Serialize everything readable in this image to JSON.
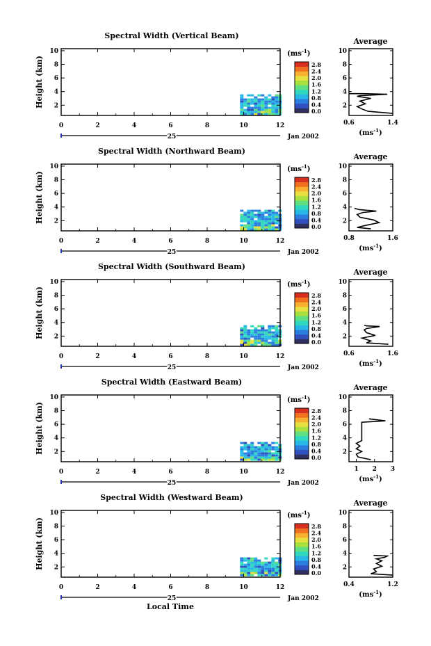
{
  "panels": [
    {
      "title": "Spectral Width (Vertical Beam)",
      "ylabel": "Height (km)",
      "unit": "(ms",
      "unit_exp": "-1",
      "colorbar_ticks": [
        "2.8",
        "2.4",
        "2.0",
        "1.6",
        "1.2",
        "0.8",
        "0.4",
        "0.0"
      ],
      "x_ticks": [
        "0",
        "2",
        "4",
        "6",
        "8",
        "10",
        "12"
      ],
      "y_ticks": [
        "2",
        "4",
        "6",
        "8",
        "10"
      ],
      "date_day": "25",
      "date_month": "Jan 2002",
      "avg_title": "Average",
      "avg_x_ticks": [
        "0.6",
        "1.4"
      ],
      "avg_y_ticks": [
        "2",
        "4",
        "6",
        "8",
        "10"
      ],
      "avg_unit": "(ms",
      "avg_unit_exp": "-1"
    },
    {
      "title": "Spectral Width (Northward Beam)",
      "ylabel": "Height (km)",
      "unit": "(ms",
      "unit_exp": "-1",
      "colorbar_ticks": [
        "2.8",
        "2.4",
        "2.0",
        "1.6",
        "1.2",
        "0.8",
        "0.4",
        "0.0"
      ],
      "x_ticks": [
        "0",
        "2",
        "4",
        "6",
        "8",
        "10",
        "12"
      ],
      "y_ticks": [
        "2",
        "4",
        "6",
        "8",
        "10"
      ],
      "date_day": "25",
      "date_month": "Jan 2002",
      "avg_title": "Average",
      "avg_x_ticks": [
        "0.8",
        "1.6"
      ],
      "avg_y_ticks": [
        "2",
        "4",
        "6",
        "8",
        "10"
      ],
      "avg_unit": "(ms",
      "avg_unit_exp": "-1"
    },
    {
      "title": "Spectral Width (Southward Beam)",
      "ylabel": "Height (km)",
      "unit": "(ms",
      "unit_exp": "-1",
      "colorbar_ticks": [
        "2.8",
        "2.4",
        "2.0",
        "1.6",
        "1.2",
        "0.8",
        "0.4",
        "0.0"
      ],
      "x_ticks": [
        "0",
        "2",
        "4",
        "6",
        "8",
        "10",
        "12"
      ],
      "y_ticks": [
        "2",
        "4",
        "6",
        "8",
        "10"
      ],
      "date_day": "25",
      "date_month": "Jan 2002",
      "avg_title": "Average",
      "avg_x_ticks": [
        "0.6",
        "1.6"
      ],
      "avg_y_ticks": [
        "2",
        "4",
        "6",
        "8",
        "10"
      ],
      "avg_unit": "(ms",
      "avg_unit_exp": "-1"
    },
    {
      "title": "Spectral Width (Eastward Beam)",
      "ylabel": "Height (km)",
      "unit": "(ms",
      "unit_exp": "-1",
      "colorbar_ticks": [
        "2.8",
        "2.4",
        "2.0",
        "1.6",
        "1.2",
        "0.8",
        "0.4",
        "0.0"
      ],
      "x_ticks": [
        "0",
        "2",
        "4",
        "6",
        "8",
        "10",
        "12"
      ],
      "y_ticks": [
        "2",
        "4",
        "6",
        "8",
        "10"
      ],
      "date_day": "25",
      "date_month": "Jan 2002",
      "avg_title": "Average",
      "avg_x_ticks": [
        "1",
        "2",
        "3"
      ],
      "avg_y_ticks": [
        "2",
        "4",
        "6",
        "8",
        "10"
      ],
      "avg_unit": "(ms",
      "avg_unit_exp": "-1"
    },
    {
      "title": "Spectral Width (Westward Beam)",
      "ylabel": "Height (km)",
      "unit": "(ms",
      "unit_exp": "-1",
      "colorbar_ticks": [
        "2.8",
        "2.4",
        "2.0",
        "1.6",
        "1.2",
        "0.8",
        "0.4",
        "0.0"
      ],
      "x_ticks": [
        "0",
        "2",
        "4",
        "6",
        "8",
        "10",
        "12"
      ],
      "y_ticks": [
        "2",
        "4",
        "6",
        "8",
        "10"
      ],
      "date_day": "25",
      "date_month": "Jan 2002",
      "avg_title": "Average",
      "avg_x_ticks": [
        "0.4",
        "1.2"
      ],
      "avg_y_ticks": [
        "2",
        "4",
        "6",
        "8",
        "10"
      ],
      "avg_unit": "(ms",
      "avg_unit_exp": "-1"
    }
  ],
  "xlabel": "Local Time",
  "colormap": [
    "#303060",
    "#3050c0",
    "#2a7ee0",
    "#28b8e8",
    "#30d8c0",
    "#60e080",
    "#a8e040",
    "#e8e040",
    "#f8b030",
    "#f07020",
    "#d83020"
  ],
  "chart_data": [
    {
      "type": "heatmap",
      "title": "Spectral Width (Vertical Beam)",
      "xlabel": "Local Time",
      "ylabel": "Height (km)",
      "xlim": [
        0,
        12
      ],
      "ylim": [
        0.5,
        10.3
      ],
      "colorbar_range": [
        0.0,
        2.8
      ],
      "data_extent": {
        "x": [
          9.8,
          12
        ],
        "y": [
          0.8,
          3.6
        ]
      },
      "typical_value": 0.9
    },
    {
      "type": "line",
      "title": "Average",
      "xlabel": "",
      "ylabel": "",
      "xlim": [
        0.6,
        1.4
      ],
      "ylim": [
        0.5,
        10.3
      ],
      "series": [
        {
          "x": [
            1.4,
            0.95,
            0.85,
            0.75,
            0.9,
            0.8,
            1.0,
            0.75,
            0.8,
            1.3,
            0.85,
            0.6
          ],
          "y": [
            0.8,
            1.1,
            1.4,
            1.8,
            2.2,
            2.6,
            3.0,
            3.3,
            3.4,
            3.6,
            3.7,
            3.7
          ]
        }
      ]
    },
    {
      "type": "heatmap",
      "title": "Spectral Width (Northward Beam)",
      "xlabel": "Local Time",
      "ylabel": "Height (km)",
      "xlim": [
        0,
        12
      ],
      "ylim": [
        0.5,
        10.3
      ],
      "colorbar_range": [
        0.0,
        2.8
      ],
      "data_extent": {
        "x": [
          9.8,
          12
        ],
        "y": [
          0.8,
          3.6
        ]
      },
      "typical_value": 0.9
    },
    {
      "type": "line",
      "title": "Average",
      "xlabel": "",
      "ylabel": "",
      "xlim": [
        0.8,
        1.6
      ],
      "ylim": [
        0.5,
        10.3
      ],
      "series": [
        {
          "x": [
            1.2,
            0.95,
            1.1,
            1.35,
            1.25,
            1.0,
            0.95,
            1.05,
            1.3,
            1.0,
            0.9
          ],
          "y": [
            0.8,
            1.0,
            1.3,
            1.7,
            2.1,
            2.5,
            2.9,
            3.2,
            3.4,
            3.6,
            3.8
          ]
        }
      ]
    },
    {
      "type": "heatmap",
      "title": "Spectral Width (Southward Beam)",
      "xlabel": "Local Time",
      "ylabel": "Height (km)",
      "xlim": [
        0,
        12
      ],
      "ylim": [
        0.5,
        10.3
      ],
      "colorbar_range": [
        0.0,
        2.8
      ],
      "data_extent": {
        "x": [
          9.8,
          12
        ],
        "y": [
          0.8,
          3.6
        ]
      },
      "typical_value": 0.9
    },
    {
      "type": "line",
      "title": "Average",
      "xlabel": "",
      "ylabel": "",
      "xlim": [
        0.6,
        1.6
      ],
      "ylim": [
        0.5,
        10.3
      ],
      "series": [
        {
          "x": [
            1.5,
            1.0,
            1.1,
            0.9,
            1.2,
            1.0,
            0.95,
            1.0,
            1.3,
            1.0,
            0.95
          ],
          "y": [
            0.8,
            1.0,
            1.3,
            1.7,
            2.1,
            2.5,
            2.9,
            3.1,
            3.4,
            3.5,
            3.6
          ]
        }
      ]
    },
    {
      "type": "heatmap",
      "title": "Spectral Width (Eastward Beam)",
      "xlabel": "Local Time",
      "ylabel": "Height (km)",
      "xlim": [
        0,
        12
      ],
      "ylim": [
        0.5,
        10.3
      ],
      "colorbar_range": [
        0.0,
        2.8
      ],
      "data_extent": {
        "x": [
          9.8,
          12
        ],
        "y": [
          0.8,
          3.4
        ]
      },
      "typical_value": 0.9
    },
    {
      "type": "line",
      "title": "Average",
      "xlabel": "",
      "ylabel": "",
      "xlim": [
        0.6,
        3.0
      ],
      "ylim": [
        0.5,
        10.3
      ],
      "series": [
        {
          "x": [
            1.8,
            1.1,
            1.0,
            1.3,
            1.0,
            1.2,
            1.0,
            1.3,
            1.3,
            2.6,
            1.7
          ],
          "y": [
            0.8,
            1.2,
            1.6,
            2.0,
            2.4,
            2.8,
            3.2,
            3.6,
            6.3,
            6.5,
            6.8
          ]
        }
      ]
    },
    {
      "type": "heatmap",
      "title": "Spectral Width (Westward Beam)",
      "xlabel": "Local Time",
      "ylabel": "Height (km)",
      "xlim": [
        0,
        12
      ],
      "ylim": [
        0.5,
        10.3
      ],
      "colorbar_range": [
        0.0,
        2.8
      ],
      "data_extent": {
        "x": [
          9.8,
          12
        ],
        "y": [
          0.8,
          3.4
        ]
      },
      "typical_value": 0.9
    },
    {
      "type": "line",
      "title": "Average",
      "xlabel": "",
      "ylabel": "",
      "xlim": [
        0.4,
        1.2
      ],
      "ylim": [
        0.5,
        10.3
      ],
      "series": [
        {
          "x": [
            1.2,
            0.8,
            0.9,
            0.85,
            1.0,
            0.9,
            1.0,
            0.9,
            1.05,
            1.1,
            0.85
          ],
          "y": [
            0.8,
            1.0,
            1.3,
            1.7,
            2.1,
            2.5,
            2.9,
            3.2,
            3.4,
            3.6,
            3.7
          ]
        }
      ]
    }
  ]
}
